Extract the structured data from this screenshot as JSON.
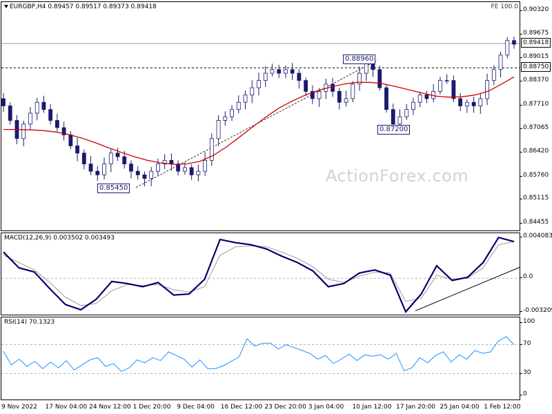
{
  "chart_data": [
    {
      "type": "candlestick",
      "title": "EURGBP,H4  0.89457 0.89517 0.89373 0.89418",
      "corner_label": "FE 100.0",
      "watermark": "ActionForex.com",
      "ylim": [
        0.8423,
        0.9056
      ],
      "y_ticks": [
        "0.90320",
        "0.89675",
        "0.89015",
        "0.88370",
        "0.87710",
        "0.87065",
        "0.86420",
        "0.85760",
        "0.85115",
        "0.84455"
      ],
      "current_price": "0.89418",
      "horizontal_level": "0.88750",
      "annotations": [
        {
          "text": "0.88960",
          "value": 0.8896
        },
        {
          "text": "0.87200",
          "value": 0.872
        },
        {
          "text": "0.85450",
          "value": 0.8545
        }
      ],
      "close": [
        0.877,
        0.873,
        0.868,
        0.872,
        0.875,
        0.878,
        0.876,
        0.873,
        0.871,
        0.869,
        0.866,
        0.864,
        0.861,
        0.859,
        0.858,
        0.861,
        0.864,
        0.863,
        0.861,
        0.859,
        0.858,
        0.857,
        0.859,
        0.861,
        0.862,
        0.861,
        0.859,
        0.86,
        0.858,
        0.859,
        0.862,
        0.868,
        0.873,
        0.874,
        0.876,
        0.878,
        0.88,
        0.882,
        0.884,
        0.886,
        0.887,
        0.886,
        0.887,
        0.886,
        0.884,
        0.881,
        0.879,
        0.881,
        0.883,
        0.881,
        0.878,
        0.879,
        0.883,
        0.886,
        0.889,
        0.887,
        0.882,
        0.876,
        0.872,
        0.874,
        0.876,
        0.878,
        0.88,
        0.879,
        0.881,
        0.884,
        0.884,
        0.879,
        0.877,
        0.878,
        0.877,
        0.879,
        0.884,
        0.887,
        0.891,
        0.895,
        0.894
      ],
      "series": [
        {
          "color": "#cc0000",
          "values": [
            0.8705,
            0.8705,
            0.8704,
            0.8702,
            0.8698,
            0.8691,
            0.8681,
            0.8669,
            0.8655,
            0.8642,
            0.863,
            0.862,
            0.8613,
            0.8609,
            0.861,
            0.8617,
            0.8633,
            0.8656,
            0.8683,
            0.8711,
            0.8738,
            0.8763,
            0.8782,
            0.8799,
            0.8812,
            0.8822,
            0.883,
            0.8835,
            0.8835,
            0.8831,
            0.8823,
            0.8814,
            0.8805,
            0.8797,
            0.8794,
            0.8795,
            0.88,
            0.881,
            0.8829,
            0.885
          ]
        }
      ]
    },
    {
      "type": "line",
      "title": "MACD(12,26,9) 0.003502 0.003493",
      "ylim": [
        -0.0036,
        0.0043
      ],
      "y_ticks": [
        "0.004083",
        "0.0",
        "-0.003209"
      ],
      "series": [
        {
          "color": "#00006e",
          "values": [
            0.0025,
            0.001,
            0.0006,
            -0.001,
            -0.0025,
            -0.003,
            -0.002,
            -0.0003,
            -0.0005,
            -0.0008,
            -0.0004,
            -0.0016,
            -0.0015,
            -0.0001,
            0.0037,
            0.0034,
            0.0032,
            0.0028,
            0.0021,
            0.0015,
            0.0007,
            -0.0008,
            -0.0005,
            0.0005,
            0.0008,
            0.0003,
            -0.0032,
            -0.0015,
            0.0012,
            -0.0002,
            0.0001,
            0.0015,
            0.0039,
            0.0035
          ]
        },
        {
          "color": "#9a9a9a",
          "values": [
            0.0022,
            0.0015,
            0.0008,
            -0.0004,
            -0.0018,
            -0.0026,
            -0.0024,
            -0.0012,
            -0.0006,
            -0.0007,
            -0.0006,
            -0.0011,
            -0.0013,
            -0.0008,
            0.0022,
            0.003,
            0.0031,
            0.003,
            0.0025,
            0.0019,
            0.0011,
            -0.0001,
            -0.0004,
            0.0002,
            0.0006,
            0.0005,
            -0.0022,
            -0.0019,
            0.0003,
            -0.0001,
            0.0,
            0.001,
            0.0032,
            0.0035
          ]
        }
      ]
    },
    {
      "type": "line",
      "title": "RSI(14) 70.1323",
      "ylim": [
        0,
        100
      ],
      "y_ticks": [
        "100",
        "70",
        "30",
        "0"
      ],
      "series": [
        {
          "color": "#1e90ff",
          "values": [
            61,
            42,
            50,
            40,
            47,
            37,
            46,
            38,
            48,
            35,
            42,
            49,
            52,
            40,
            44,
            33,
            38,
            49,
            45,
            52,
            48,
            60,
            55,
            50,
            39,
            49,
            37,
            37,
            41,
            47,
            53,
            78,
            68,
            72,
            72,
            64,
            70,
            66,
            62,
            58,
            50,
            55,
            44,
            50,
            57,
            48,
            56,
            54,
            56,
            50,
            58,
            34,
            38,
            52,
            45,
            55,
            60,
            46,
            56,
            50,
            62,
            58,
            60,
            75,
            81,
            70
          ]
        }
      ]
    }
  ],
  "x_axis": {
    "labels": [
      "9 Nov 2022",
      "17 Nov 04:00",
      "24 Nov 12:00",
      "1 Dec 20:00",
      "9 Dec 04:00",
      "16 Dec 12:00",
      "23 Dec 20:00",
      "3 Jan 04:00",
      "10 Jan 12:00",
      "17 Jan 20:00",
      "25 Jan 04:00",
      "1 Feb 12:00"
    ]
  },
  "colors": {
    "candle": "#1a1a6e",
    "ma": "#cc0000",
    "macd": "#00006e",
    "signal": "#9a9a9a",
    "rsi": "#1e90ff"
  }
}
